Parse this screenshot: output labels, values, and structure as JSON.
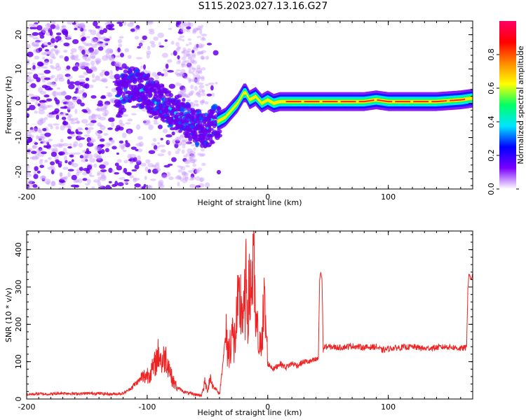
{
  "title": "S115.2023.027.13.16.G27",
  "chart_data": [
    {
      "type": "heatmap",
      "xlabel": "Height of straight line (km)",
      "ylabel": "Frequency (Hz)",
      "xlim": [
        -200,
        170
      ],
      "ylim": [
        -25,
        24
      ],
      "xticks": [
        -200,
        -100,
        0,
        100
      ],
      "xtick_labels": [
        "-200",
        "-100",
        "0",
        "100"
      ],
      "yticks": [
        -20,
        -10,
        0,
        10,
        20
      ],
      "ytick_labels": [
        "-20",
        "-10",
        "0",
        "10",
        "20"
      ],
      "ridge": {
        "x": [
          -120,
          -110,
          -100,
          -90,
          -80,
          -70,
          -60,
          -50,
          -45,
          -40,
          -35,
          -30,
          -25,
          -20,
          -18,
          -15,
          -10,
          -5,
          0,
          5,
          10,
          20,
          40,
          60,
          80,
          90,
          100,
          120,
          140,
          160,
          170
        ],
        "y": [
          6,
          5,
          3,
          1,
          -2,
          -4,
          -7,
          -8,
          -6,
          -5,
          -4,
          -2,
          0,
          3,
          3,
          1,
          2,
          0,
          1,
          0,
          0.5,
          0.5,
          0.5,
          0.5,
          0.5,
          1,
          0.5,
          0.5,
          0.5,
          1,
          1.5
        ]
      },
      "colorbar": {
        "label": "Normalized spectral amplitude",
        "range": [
          0,
          1
        ],
        "ticks": [
          0.0,
          0.2,
          0.4,
          0.6,
          0.8
        ],
        "tick_labels": [
          "0.0",
          "0.2",
          "0.4",
          "0.6",
          "0.8"
        ],
        "colors": [
          "#ffffff",
          "#7a00ff",
          "#0000ff",
          "#00e5ff",
          "#00ff66",
          "#ffff00",
          "#ff8800",
          "#ff0000",
          "#ff0066"
        ]
      }
    },
    {
      "type": "line",
      "xlabel": "Height of straight line (km)",
      "ylabel": "SNR (10 * v/v)",
      "xlim": [
        -200,
        170
      ],
      "ylim": [
        0,
        450
      ],
      "xticks": [
        -200,
        -100,
        0,
        100
      ],
      "xtick_labels": [
        "-200",
        "-100",
        "0",
        "100"
      ],
      "yticks": [
        0,
        100,
        200,
        300,
        400
      ],
      "ytick_labels": [
        "0",
        "100",
        "200",
        "300",
        "400"
      ],
      "series": [
        {
          "color": "#ee2222",
          "x": [
            -200,
            -190,
            -180,
            -170,
            -160,
            -150,
            -140,
            -130,
            -120,
            -115,
            -110,
            -105,
            -100,
            -95,
            -92,
            -90,
            -88,
            -85,
            -82,
            -80,
            -78,
            -75,
            -72,
            -70,
            -65,
            -60,
            -55,
            -52,
            -50,
            -48,
            -45,
            -42,
            -40,
            -35,
            -32,
            -30,
            -28,
            -25,
            -22,
            -20,
            -18,
            -16,
            -14,
            -13,
            -12,
            -11,
            -10,
            -8,
            -6,
            -5,
            -4,
            -3,
            -2,
            -1,
            0,
            5,
            10,
            15,
            20,
            25,
            30,
            35,
            40,
            42,
            43,
            44,
            45,
            46,
            47,
            50,
            60,
            70,
            80,
            90,
            95,
            100,
            110,
            120,
            130,
            140,
            150,
            160,
            165,
            166,
            167,
            168,
            170
          ],
          "y": [
            12,
            14,
            13,
            16,
            14,
            15,
            15,
            13,
            15,
            25,
            40,
            55,
            65,
            80,
            110,
            125,
            95,
            115,
            90,
            60,
            45,
            30,
            25,
            20,
            15,
            12,
            10,
            45,
            20,
            60,
            30,
            25,
            10,
            170,
            120,
            190,
            140,
            230,
            260,
            210,
            300,
            250,
            320,
            290,
            445,
            260,
            200,
            160,
            120,
            230,
            200,
            245,
            215,
            160,
            95,
            80,
            95,
            85,
            95,
            90,
            100,
            100,
            105,
            110,
            320,
            340,
            320,
            130,
            140,
            140,
            138,
            142,
            138,
            140,
            130,
            135,
            138,
            140,
            135,
            138,
            140,
            135,
            138,
            300,
            340,
            320,
            330
          ]
        }
      ]
    }
  ]
}
